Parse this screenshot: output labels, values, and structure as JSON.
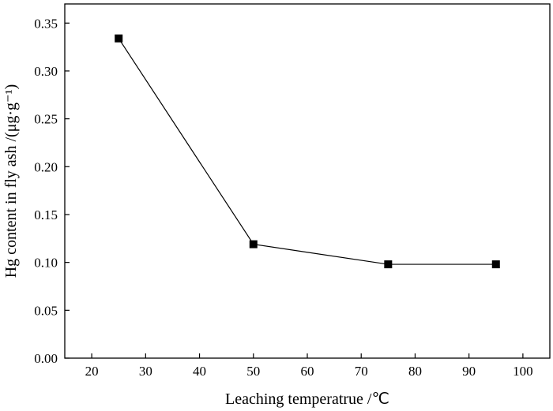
{
  "chart_data": {
    "type": "line",
    "xlabel": "Leaching temperatrue /℃",
    "ylabel": "Hg content in fly ash /(μg·g⁻¹)",
    "xlim": [
      15,
      105
    ],
    "ylim": [
      0.0,
      0.37
    ],
    "x_ticks": [
      20,
      30,
      40,
      50,
      60,
      70,
      80,
      90,
      100
    ],
    "y_ticks": [
      0.0,
      0.05,
      0.1,
      0.15,
      0.2,
      0.25,
      0.3,
      0.35
    ],
    "x_tick_labels": [
      "20",
      "30",
      "40",
      "50",
      "60",
      "70",
      "80",
      "90",
      "100"
    ],
    "y_tick_labels": [
      "0.00",
      "0.05",
      "0.10",
      "0.15",
      "0.20",
      "0.25",
      "0.30",
      "0.35"
    ],
    "series": [
      {
        "x": [
          25,
          50,
          75,
          95
        ],
        "y": [
          0.334,
          0.119,
          0.098,
          0.098
        ],
        "marker": "square",
        "color": "#000000"
      }
    ],
    "grid": false,
    "legend": "none"
  }
}
